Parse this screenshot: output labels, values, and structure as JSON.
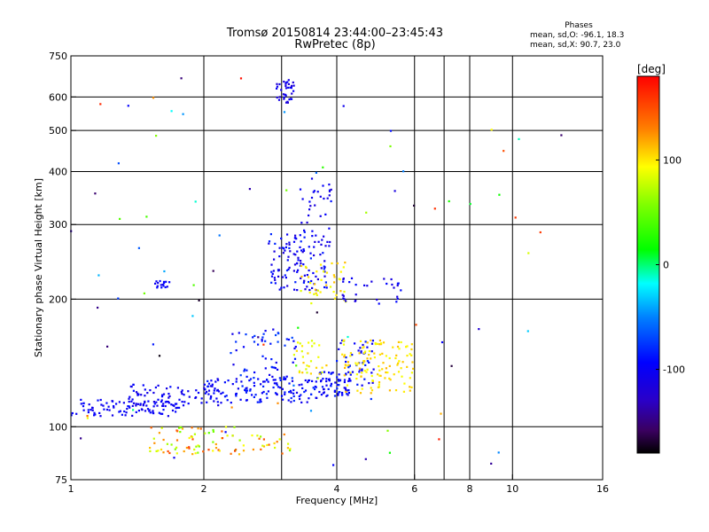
{
  "chart_data": {
    "type": "scatter",
    "title": "Tromsø 20150814 23:44:00–23:45:43",
    "subtitle": "RwPretec (8p)",
    "phases": {
      "heading": "Phases",
      "line1": "mean, sd,O: -96.1, 18.3",
      "line2": "mean, sd,X:  90.7, 23.0"
    },
    "xlabel": "Frequency [MHz]",
    "ylabel": "Stationary phase Virtual Height [km]",
    "x_scale": "log",
    "y_scale": "log",
    "xlim": [
      1,
      16
    ],
    "ylim": [
      75,
      750
    ],
    "xticks": [
      {
        "value": 1,
        "label": "1"
      },
      {
        "value": 2,
        "label": "2"
      },
      {
        "value": 4,
        "label": "4"
      },
      {
        "value": 6,
        "label": "6"
      },
      {
        "value": 8,
        "label": "8"
      },
      {
        "value": 10,
        "label": "10"
      },
      {
        "value": 16,
        "label": "16"
      }
    ],
    "xgrid": [
      2,
      3,
      4,
      6,
      7,
      8,
      10
    ],
    "yticks": [
      {
        "value": 75,
        "label": "75"
      },
      {
        "value": 100,
        "label": "100"
      },
      {
        "value": 200,
        "label": "200"
      },
      {
        "value": 300,
        "label": "300"
      },
      {
        "value": 400,
        "label": "400"
      },
      {
        "value": 500,
        "label": "500"
      },
      {
        "value": 600,
        "label": "600"
      },
      {
        "value": 750,
        "label": "750"
      }
    ],
    "ygrid": [
      100,
      200,
      300,
      400,
      500,
      600
    ],
    "grid": true,
    "colorbar": {
      "label": "[deg]",
      "range": [
        -180,
        180
      ],
      "ticks": [
        {
          "value": 100,
          "label": "100"
        },
        {
          "value": 0,
          "label": "0"
        },
        {
          "value": -100,
          "label": "-100"
        }
      ]
    },
    "clusters": [
      {
        "x0": 1.0,
        "x1": 1.8,
        "h0": 106,
        "h1": 116,
        "phase": [
          -110,
          -90
        ],
        "count": 95
      },
      {
        "x0": 1.35,
        "x1": 2.2,
        "h0": 112,
        "h1": 126,
        "phase": [
          -115,
          -90
        ],
        "count": 75
      },
      {
        "x0": 2.0,
        "x1": 3.6,
        "h0": 114,
        "h1": 130,
        "phase": [
          -110,
          -80
        ],
        "count": 130
      },
      {
        "x0": 3.6,
        "x1": 4.3,
        "h0": 118,
        "h1": 135,
        "phase": [
          -110,
          -80
        ],
        "count": 65
      },
      {
        "x0": 4.0,
        "x1": 4.9,
        "h0": 125,
        "h1": 160,
        "phase": [
          -110,
          -80
        ],
        "count": 50
      },
      {
        "x0": 4.1,
        "x1": 6.0,
        "h0": 120,
        "h1": 160,
        "phase": [
          90,
          115
        ],
        "count": 120
      },
      {
        "x0": 2.3,
        "x1": 3.3,
        "h0": 130,
        "h1": 170,
        "phase": [
          -110,
          -70
        ],
        "count": 55
      },
      {
        "x0": 3.2,
        "x1": 3.8,
        "h0": 130,
        "h1": 160,
        "phase": [
          80,
          110
        ],
        "count": 30
      },
      {
        "x0": 2.8,
        "x1": 3.8,
        "h0": 210,
        "h1": 285,
        "phase": [
          -120,
          -80
        ],
        "count": 110
      },
      {
        "x0": 3.2,
        "x1": 3.9,
        "h0": 250,
        "h1": 375,
        "phase": [
          -125,
          -85
        ],
        "count": 40
      },
      {
        "x0": 3.3,
        "x1": 4.2,
        "h0": 195,
        "h1": 245,
        "phase": [
          85,
          115
        ],
        "count": 40
      },
      {
        "x0": 4.1,
        "x1": 5.6,
        "h0": 195,
        "h1": 225,
        "phase": [
          -120,
          -90
        ],
        "count": 30
      },
      {
        "x0": 1.55,
        "x1": 1.7,
        "h0": 213,
        "h1": 222,
        "phase": [
          -110,
          -90
        ],
        "count": 16
      },
      {
        "x0": 1.5,
        "x1": 2.4,
        "h0": 86,
        "h1": 100,
        "phase": [
          40,
          160
        ],
        "count": 70
      },
      {
        "x0": 2.4,
        "x1": 3.2,
        "h0": 86,
        "h1": 96,
        "phase": [
          60,
          150
        ],
        "count": 25
      },
      {
        "x0": 2.9,
        "x1": 3.2,
        "h0": 580,
        "h1": 660,
        "phase": [
          -125,
          -95
        ],
        "count": 35
      },
      {
        "x0": 1.0,
        "x1": 14.0,
        "h0": 80,
        "h1": 680,
        "phase": [
          -180,
          180
        ],
        "count": 85
      }
    ]
  }
}
